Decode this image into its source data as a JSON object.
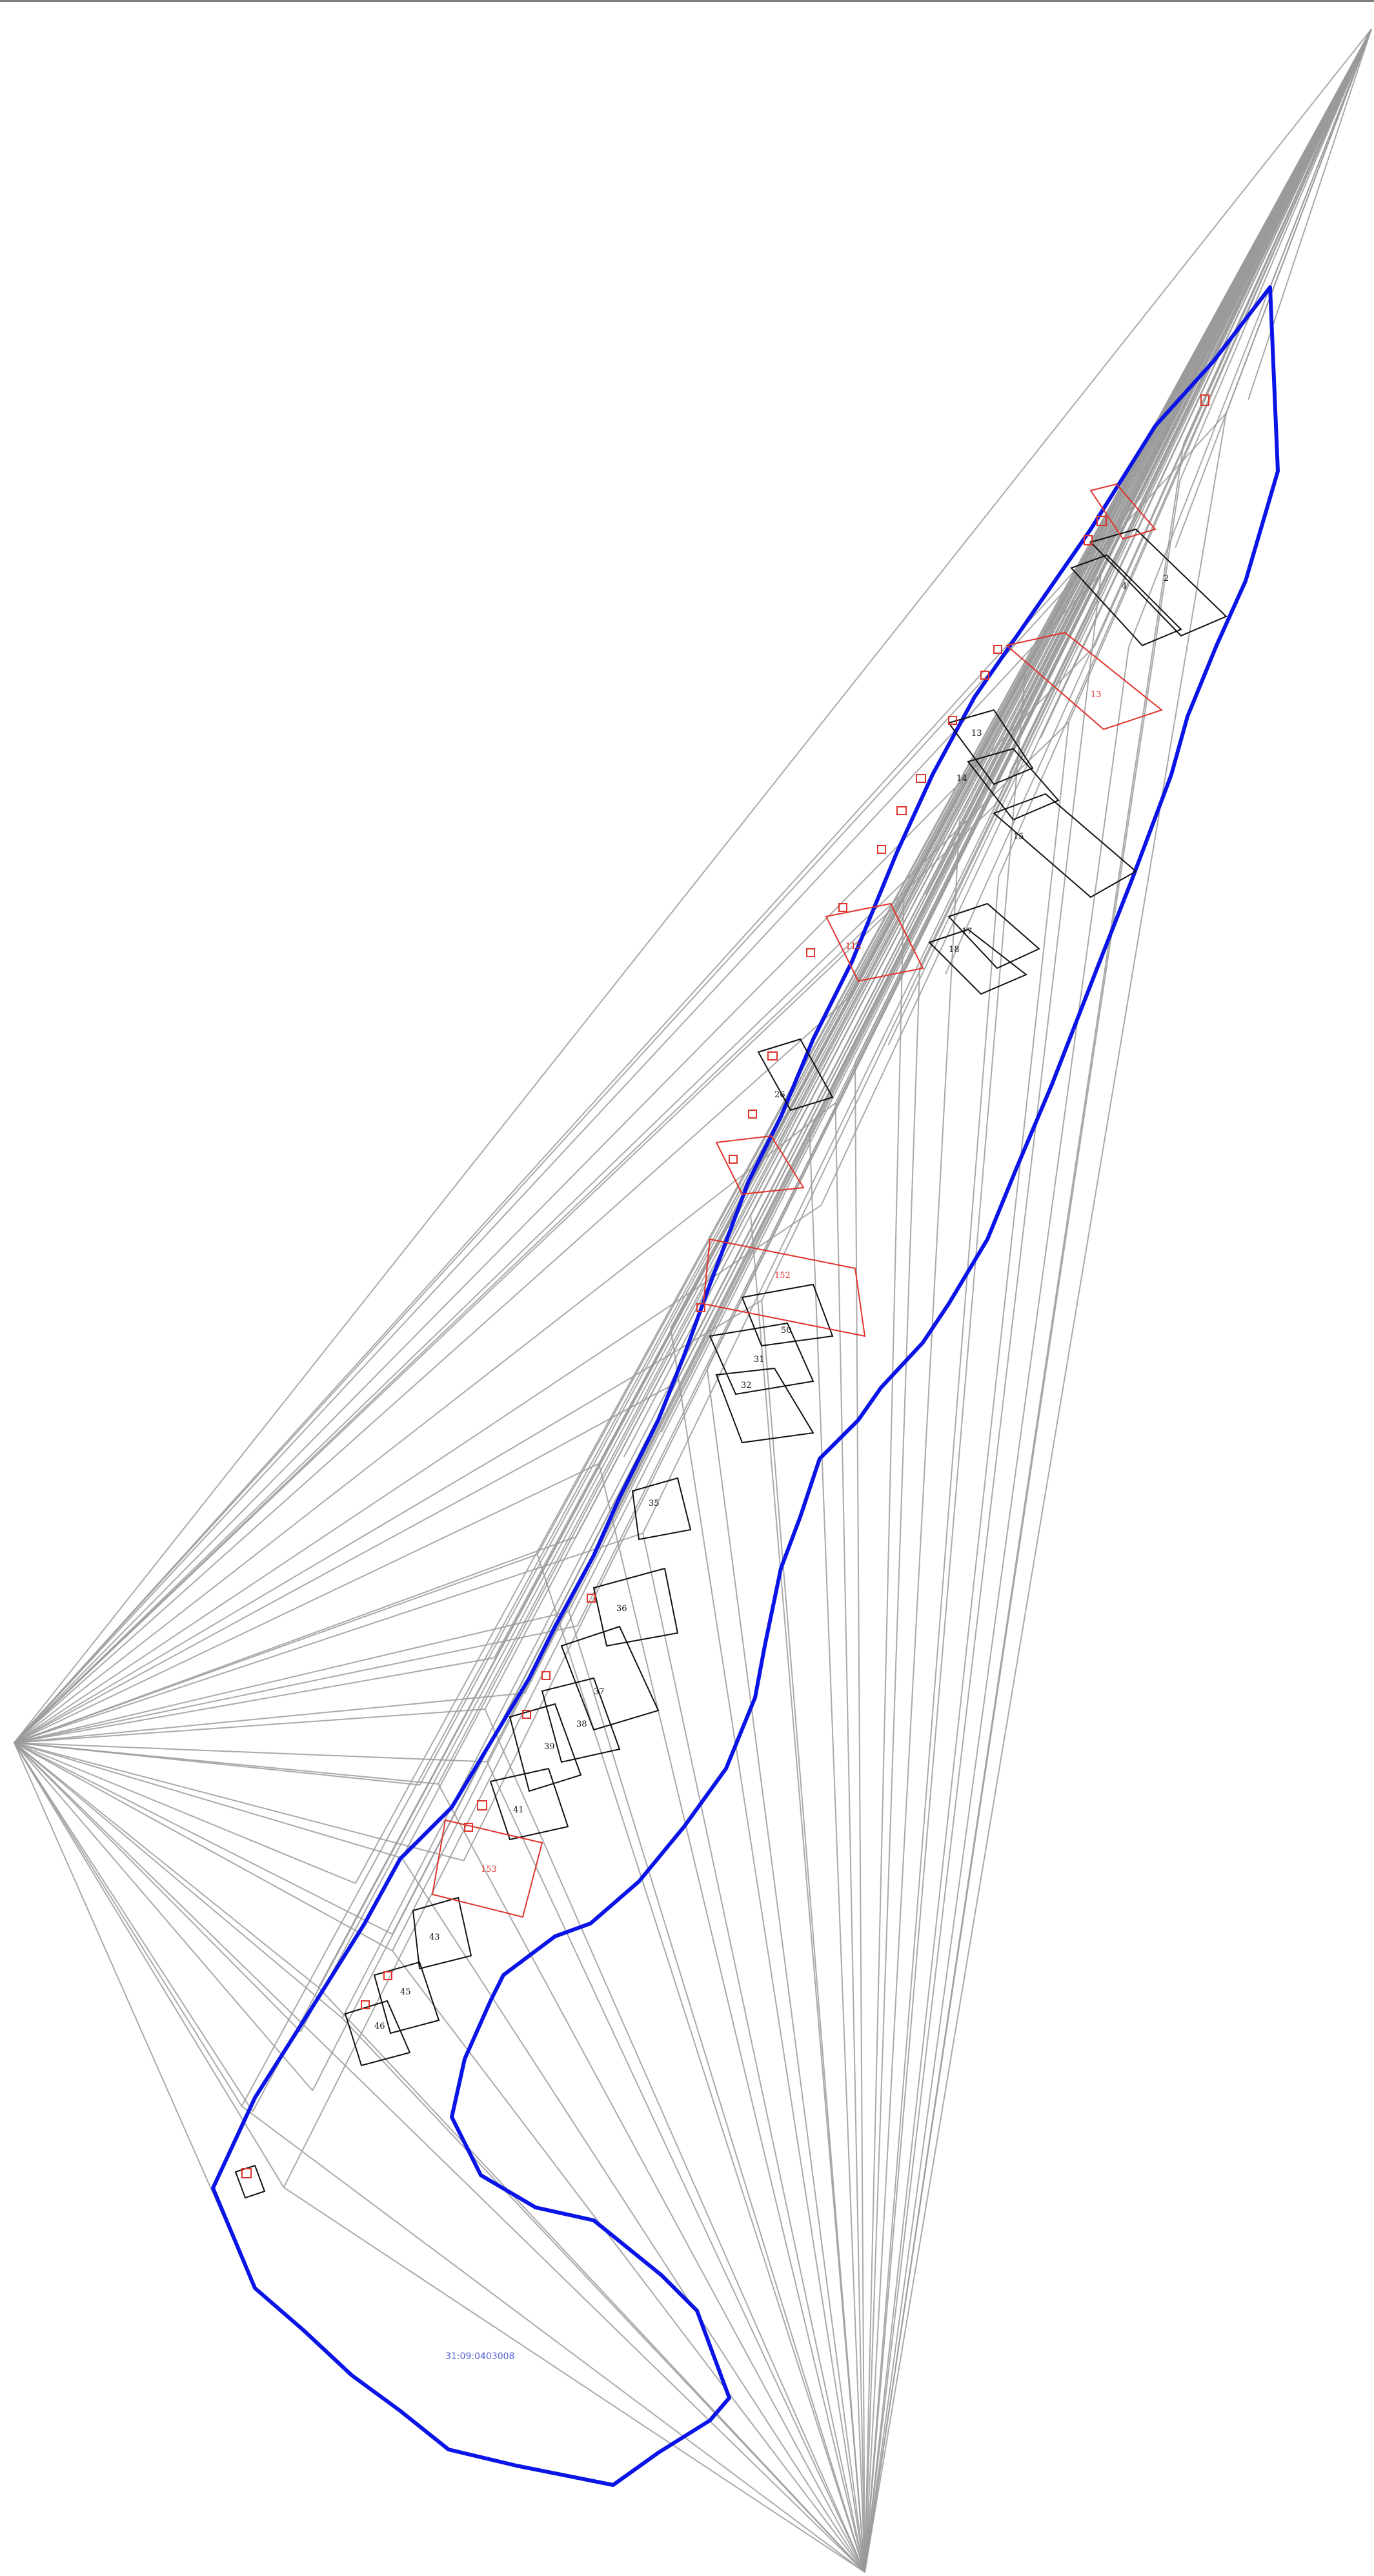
{
  "map": {
    "cadastral_number": "31:09:0403008",
    "colors": {
      "boundary": "#0a14e6",
      "parcel_outline": "#111111",
      "highlight_parcel": "#e0342c",
      "survey_rays": "#9a9a9a",
      "cadastral_label": "#5560d0"
    },
    "parcels": [
      {
        "id": "p2",
        "label": "2",
        "color": "black"
      },
      {
        "id": "p4",
        "label": "4",
        "color": "black"
      },
      {
        "id": "p13",
        "label": "13",
        "color": "black"
      },
      {
        "id": "p14",
        "label": "14",
        "color": "black"
      },
      {
        "id": "p15",
        "label": "15",
        "color": "black"
      },
      {
        "id": "p17",
        "label": "17",
        "color": "black"
      },
      {
        "id": "p18",
        "label": "18",
        "color": "black"
      },
      {
        "id": "p26",
        "label": "26",
        "color": "black"
      },
      {
        "id": "p31",
        "label": "31",
        "color": "black"
      },
      {
        "id": "p32",
        "label": "32",
        "color": "black"
      },
      {
        "id": "p35",
        "label": "35",
        "color": "black"
      },
      {
        "id": "p36",
        "label": "36",
        "color": "black"
      },
      {
        "id": "p37",
        "label": "37",
        "color": "black"
      },
      {
        "id": "p38",
        "label": "38",
        "color": "black"
      },
      {
        "id": "p39",
        "label": "39",
        "color": "black"
      },
      {
        "id": "p41",
        "label": "41",
        "color": "black"
      },
      {
        "id": "p43",
        "label": "43",
        "color": "black"
      },
      {
        "id": "p45",
        "label": "45",
        "color": "black"
      },
      {
        "id": "p46",
        "label": "46",
        "color": "black"
      },
      {
        "id": "p50",
        "label": "50",
        "color": "black"
      },
      {
        "id": "r13",
        "label": "13",
        "color": "red"
      },
      {
        "id": "r112",
        "label": "112",
        "color": "red"
      },
      {
        "id": "r152",
        "label": "152",
        "color": "red"
      },
      {
        "id": "r153",
        "label": "153",
        "color": "red"
      }
    ]
  }
}
